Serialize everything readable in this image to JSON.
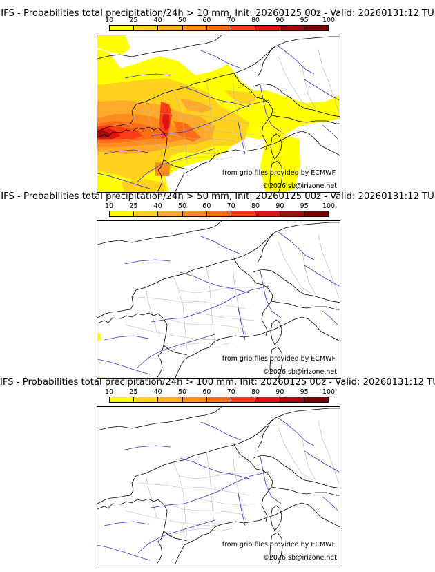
{
  "panels": [
    {
      "title": "IFS - Probabilities total precipitation/24h > 10 mm, Init: 20260125 00z - Valid: 20260131:12 TU",
      "threshold_mm": 10,
      "coverage": "widespread"
    },
    {
      "title": "IFS - Probabilities total precipitation/24h > 50 mm, Init: 20260125 00z - Valid: 20260131:12 TU",
      "threshold_mm": 50,
      "coverage": "minimal"
    },
    {
      "title": "IFS - Probabilities total precipitation/24h > 100 mm, Init: 20260125 00z - Valid: 20260131:12 TU",
      "threshold_mm": 100,
      "coverage": "none"
    }
  ],
  "colorbar": {
    "ticks": [
      "10",
      "25",
      "40",
      "50",
      "60",
      "70",
      "80",
      "90",
      "95",
      "100"
    ],
    "colors": [
      "#ffff00",
      "#ffd21e",
      "#ffaa28",
      "#ff8c1e",
      "#ff6e14",
      "#ff3c14",
      "#dc1414",
      "#a00a0a",
      "#780000"
    ]
  },
  "credits": {
    "source": "from grib files provided by ECMWF",
    "copyright": "©2026 sb@irizone.net"
  },
  "map_colors": {
    "coast": "#000000",
    "borders": "#000000",
    "regions": "#b4b4b4",
    "rivers": "#3232dc"
  }
}
